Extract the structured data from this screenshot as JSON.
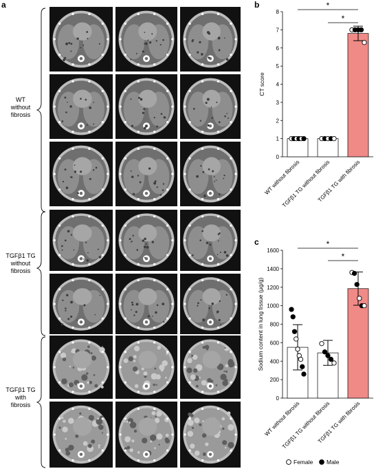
{
  "panels": {
    "a": {
      "letter": "a"
    },
    "b": {
      "letter": "b"
    },
    "c": {
      "letter": "c"
    }
  },
  "groups": [
    {
      "label_lines": [
        "WT",
        "without",
        "fibrosis"
      ],
      "rows": 3
    },
    {
      "label_lines": [
        "TGFβ1 TG",
        "without",
        "fibrosis"
      ],
      "rows": 2
    },
    {
      "label_lines": [
        "TGFβ1 TG",
        "with",
        "fibrosis"
      ],
      "rows": 2
    }
  ],
  "colors": {
    "wt_bar": "#ffffff",
    "tg_no_fib_bar": "#ffffff",
    "tg_fib_bar": "#f08a87",
    "axis": "#000000",
    "scan_bg": "#111111",
    "lung_tissue": "#8e8e8e",
    "heart": "#a6a6a6",
    "bone": "#ffffff"
  },
  "legend": {
    "female": "Female",
    "male": "Male"
  },
  "chart_data": [
    {
      "id": "b",
      "type": "bar",
      "ylabel": "CT score",
      "ylim": [
        0,
        8
      ],
      "yticks": [
        0,
        1,
        2,
        3,
        4,
        5,
        6,
        7,
        8
      ],
      "categories": [
        "WT without fibrosis",
        "TGFβ1 TG without fibrosis",
        "TGFβ1 TG with fibrosis"
      ],
      "values": [
        1,
        1,
        6.8
      ],
      "error": [
        0,
        0,
        0.4
      ],
      "points": [
        [
          {
            "y": 1,
            "sex": "female"
          },
          {
            "y": 1,
            "sex": "male"
          },
          {
            "y": 1,
            "sex": "female"
          },
          {
            "y": 1,
            "sex": "male"
          },
          {
            "y": 1,
            "sex": "female"
          },
          {
            "y": 1,
            "sex": "male"
          }
        ],
        [
          {
            "y": 1,
            "sex": "female"
          },
          {
            "y": 1,
            "sex": "male"
          },
          {
            "y": 1,
            "sex": "female"
          },
          {
            "y": 1,
            "sex": "male"
          },
          {
            "y": 1,
            "sex": "female"
          }
        ],
        [
          {
            "y": 7,
            "sex": "female"
          },
          {
            "y": 7,
            "sex": "male"
          },
          {
            "y": 7,
            "sex": "male"
          },
          {
            "y": 7,
            "sex": "male"
          },
          {
            "y": 6.3,
            "sex": "female"
          }
        ]
      ],
      "significance": [
        {
          "from": 0,
          "to": 2,
          "label": "*"
        },
        {
          "from": 1,
          "to": 2,
          "label": "*"
        }
      ]
    },
    {
      "id": "c",
      "type": "bar",
      "ylabel": "Sodium content in lung tissue (μg/g)",
      "ylim": [
        0,
        1600
      ],
      "yticks": [
        0,
        200,
        400,
        600,
        800,
        1000,
        1200,
        1400,
        1600
      ],
      "categories": [
        "WT without fibrosis",
        "TGFβ1 TG without fibrosis",
        "TGFβ1 TG with fibrosis"
      ],
      "values": [
        550,
        490,
        1185
      ],
      "error": [
        245,
        135,
        180
      ],
      "points": [
        [
          {
            "y": 960,
            "sex": "male"
          },
          {
            "y": 880,
            "sex": "male"
          },
          {
            "y": 720,
            "sex": "male"
          },
          {
            "y": 640,
            "sex": "female"
          },
          {
            "y": 530,
            "sex": "female"
          },
          {
            "y": 460,
            "sex": "female"
          },
          {
            "y": 420,
            "sex": "female"
          },
          {
            "y": 340,
            "sex": "male"
          },
          {
            "y": 260,
            "sex": "male"
          }
        ],
        [
          {
            "y": 590,
            "sex": "female"
          },
          {
            "y": 500,
            "sex": "male"
          },
          {
            "y": 460,
            "sex": "male"
          },
          {
            "y": 420,
            "sex": "male"
          },
          {
            "y": 380,
            "sex": "female"
          }
        ],
        [
          {
            "y": 1360,
            "sex": "female"
          },
          {
            "y": 1350,
            "sex": "male"
          },
          {
            "y": 1230,
            "sex": "male"
          },
          {
            "y": 1080,
            "sex": "female"
          },
          {
            "y": 1000,
            "sex": "male"
          },
          {
            "y": 1000,
            "sex": "female"
          }
        ]
      ],
      "significance": [
        {
          "from": 0,
          "to": 2,
          "label": "*"
        },
        {
          "from": 1,
          "to": 2,
          "label": "*"
        }
      ]
    }
  ]
}
